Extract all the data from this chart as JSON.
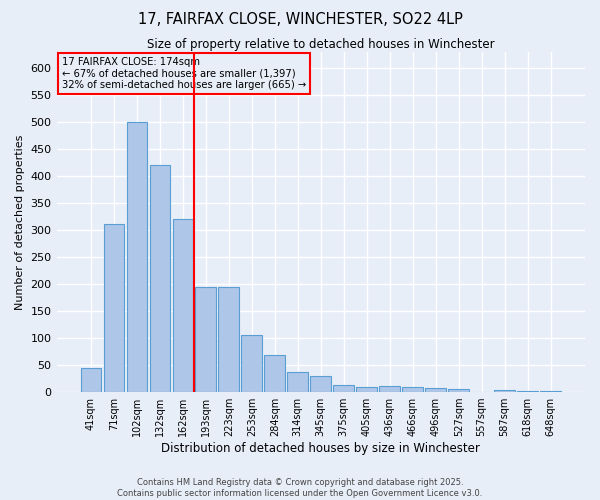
{
  "title1": "17, FAIRFAX CLOSE, WINCHESTER, SO22 4LP",
  "title2": "Size of property relative to detached houses in Winchester",
  "xlabel": "Distribution of detached houses by size in Winchester",
  "ylabel": "Number of detached properties",
  "categories": [
    "41sqm",
    "71sqm",
    "102sqm",
    "132sqm",
    "162sqm",
    "193sqm",
    "223sqm",
    "253sqm",
    "284sqm",
    "314sqm",
    "345sqm",
    "375sqm",
    "405sqm",
    "436sqm",
    "466sqm",
    "496sqm",
    "527sqm",
    "557sqm",
    "587sqm",
    "618sqm",
    "648sqm"
  ],
  "values": [
    45,
    311,
    500,
    420,
    320,
    194,
    194,
    105,
    69,
    37,
    30,
    13,
    10,
    11,
    10,
    7,
    5,
    1,
    3,
    2,
    2
  ],
  "bar_color": "#aec6e8",
  "bar_edge_color": "#5a9fd4",
  "bg_color": "#e8eef8",
  "grid_color": "#ffffff",
  "red_line_x": 4.5,
  "annotation_line1": "17 FAIRFAX CLOSE: 174sqm",
  "annotation_line2": "← 67% of detached houses are smaller (1,397)",
  "annotation_line3": "32% of semi-detached houses are larger (665) →",
  "footer1": "Contains HM Land Registry data © Crown copyright and database right 2025.",
  "footer2": "Contains public sector information licensed under the Open Government Licence v3.0.",
  "ylim": [
    0,
    630
  ],
  "yticks": [
    0,
    50,
    100,
    150,
    200,
    250,
    300,
    350,
    400,
    450,
    500,
    550,
    600
  ]
}
